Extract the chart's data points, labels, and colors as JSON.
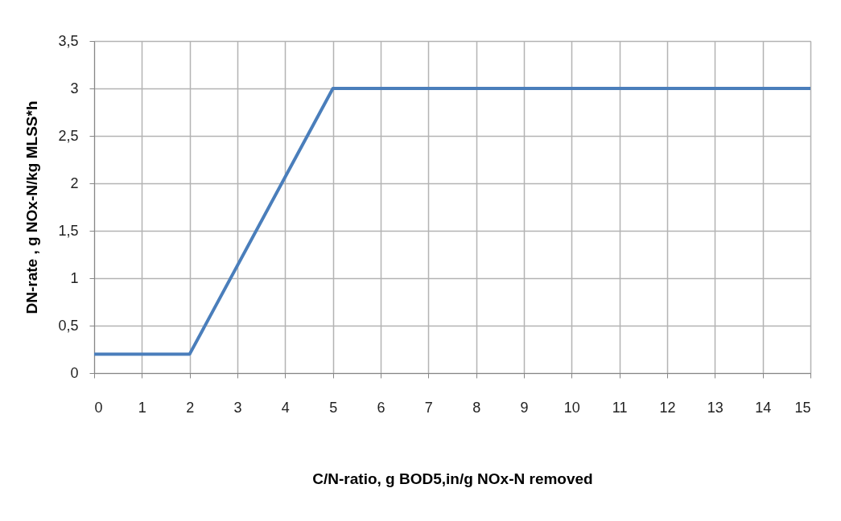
{
  "chart_data": {
    "type": "line",
    "xlabel": "C/N-ratio, g BOD5,in/g NOx-N removed",
    "ylabel": "DN-rate , g NOx-N/kg MLSS*h",
    "x": [
      0,
      2,
      5,
      15
    ],
    "series": [
      {
        "color": "#4a7ebb",
        "values": [
          0.2,
          0.2,
          3,
          3
        ]
      }
    ],
    "xlim": [
      0,
      15
    ],
    "xticks": [
      0,
      1,
      2,
      3,
      4,
      5,
      6,
      7,
      8,
      9,
      10,
      11,
      12,
      13,
      14,
      15
    ],
    "ylim": [
      0,
      3.5
    ],
    "yticks": [
      0,
      {
        "value": 0.5,
        "label": "0,5"
      },
      1,
      {
        "value": 1.5,
        "label": "1,5"
      },
      2,
      {
        "value": 2.5,
        "label": "2,5"
      },
      3,
      {
        "value": 3.5,
        "label": "3,5"
      }
    ],
    "grid": true,
    "legend": false,
    "marker": "none",
    "line_style": "solid"
  }
}
